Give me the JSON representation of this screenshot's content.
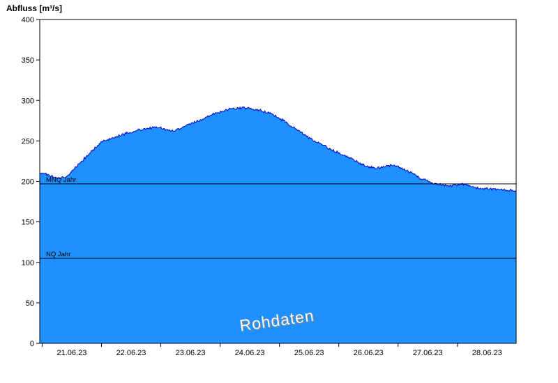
{
  "chart_data": {
    "type": "area",
    "title": "Abfluss [m³/s]",
    "ylabel": "Abfluss [m³/s]",
    "ylim": [
      0,
      400
    ],
    "y_ticks": [
      0,
      50,
      100,
      150,
      200,
      250,
      300,
      350,
      400
    ],
    "xlim": [
      0,
      8.03
    ],
    "x_labels": [
      "21.06.23",
      "22.06.23",
      "23.06.23",
      "24.06.23",
      "25.06.23",
      "26.06.23",
      "27.06.23",
      "28.06.23"
    ],
    "day_start_offsets": [
      0.04,
      1.04,
      2.04,
      3.04,
      4.04,
      5.04,
      6.04,
      7.04
    ],
    "reference_lines": [
      {
        "label": "MNQ Jahr",
        "value": 197
      },
      {
        "label": "NQ Jahr",
        "value": 105
      }
    ],
    "watermark": "Rohdaten",
    "noise_amplitude": 1.7,
    "series": {
      "name": "Abfluss Rohdaten",
      "unit": "m³/s",
      "points": [
        [
          0.0,
          211
        ],
        [
          0.15,
          208
        ],
        [
          0.3,
          204
        ],
        [
          0.45,
          206
        ],
        [
          0.6,
          217
        ],
        [
          0.75,
          228
        ],
        [
          0.9,
          239
        ],
        [
          1.05,
          249
        ],
        [
          1.2,
          253
        ],
        [
          1.35,
          257
        ],
        [
          1.5,
          260
        ],
        [
          1.65,
          263
        ],
        [
          1.8,
          265
        ],
        [
          1.95,
          267
        ],
        [
          2.05,
          266
        ],
        [
          2.15,
          263
        ],
        [
          2.25,
          262
        ],
        [
          2.35,
          264
        ],
        [
          2.5,
          270
        ],
        [
          2.65,
          274
        ],
        [
          2.8,
          279
        ],
        [
          2.95,
          284
        ],
        [
          3.1,
          287
        ],
        [
          3.25,
          290
        ],
        [
          3.4,
          291
        ],
        [
          3.55,
          290
        ],
        [
          3.7,
          288
        ],
        [
          3.85,
          285
        ],
        [
          4.0,
          280
        ],
        [
          4.15,
          273
        ],
        [
          4.3,
          265
        ],
        [
          4.45,
          258
        ],
        [
          4.6,
          251
        ],
        [
          4.75,
          246
        ],
        [
          4.9,
          240
        ],
        [
          5.05,
          235
        ],
        [
          5.2,
          230
        ],
        [
          5.35,
          224
        ],
        [
          5.5,
          219
        ],
        [
          5.65,
          216
        ],
        [
          5.8,
          218
        ],
        [
          5.95,
          220
        ],
        [
          6.05,
          218
        ],
        [
          6.2,
          213
        ],
        [
          6.35,
          207
        ],
        [
          6.5,
          201
        ],
        [
          6.65,
          198
        ],
        [
          6.8,
          195
        ],
        [
          6.95,
          195
        ],
        [
          7.1,
          197
        ],
        [
          7.25,
          194
        ],
        [
          7.4,
          192
        ],
        [
          7.6,
          191
        ],
        [
          7.8,
          190
        ],
        [
          8.03,
          188
        ]
      ]
    },
    "colors": {
      "fill": "#1E90FF",
      "line": "#0000C8",
      "axis": "#000000",
      "reference_line": "#000000",
      "tick_label": "#000000"
    }
  }
}
